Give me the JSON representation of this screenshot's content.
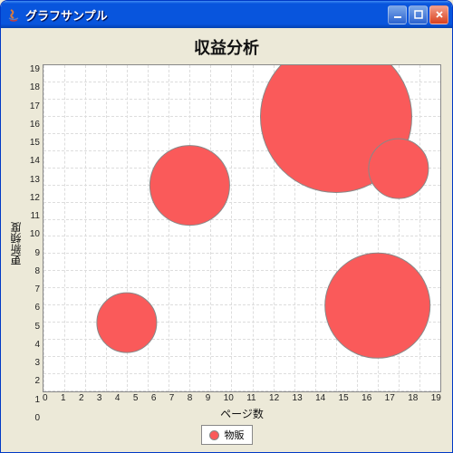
{
  "window": {
    "title": "グラフサンプル",
    "buttons": {
      "min": "_",
      "max": "□",
      "close": "×"
    },
    "icon_color_top": "#d97b3c",
    "icon_color_mid": "#5d7fc0",
    "icon_color_bot": "#c04040"
  },
  "chart": {
    "type": "bubble",
    "title": "収益分析",
    "title_fontsize": 18,
    "xlabel": "ページ数",
    "ylabel": "更新頻度",
    "label_fontsize": 12,
    "xlim": [
      0,
      19
    ],
    "ylim": [
      0,
      19
    ],
    "xtick_step": 1,
    "ytick_step": 1,
    "background_color": "#ffffff",
    "grid_color": "#dddddd",
    "grid_dashed": true,
    "axis_color": "#888888",
    "series": [
      {
        "name": "物販",
        "color": "#fa5a5a",
        "border_color": "#888888",
        "fill_opacity": 1.0,
        "points": [
          {
            "x": 4,
            "y": 4,
            "r": 1.6
          },
          {
            "x": 7,
            "y": 12,
            "r": 2.1
          },
          {
            "x": 14,
            "y": 16,
            "r": 4.0
          },
          {
            "x": 17,
            "y": 13,
            "r": 1.6
          },
          {
            "x": 16,
            "y": 5,
            "r": 2.8
          }
        ]
      }
    ],
    "legend": {
      "position": "bottom-center"
    }
  }
}
